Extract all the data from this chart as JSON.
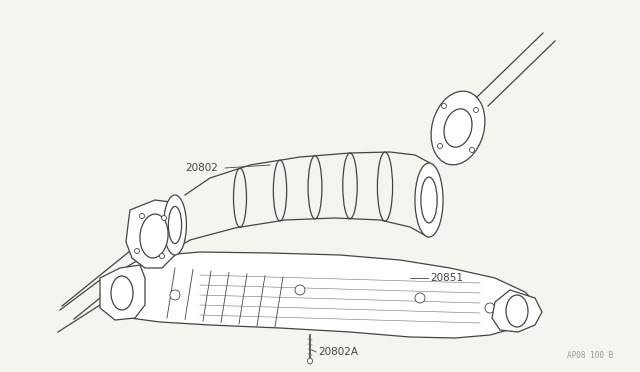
{
  "background_color": "#f5f5f0",
  "line_color": "#444444",
  "label_color": "#444444",
  "fig_width": 6.4,
  "fig_height": 3.72,
  "dpi": 100,
  "watermark": "AP08 100 B",
  "watermark_color": "#999999"
}
